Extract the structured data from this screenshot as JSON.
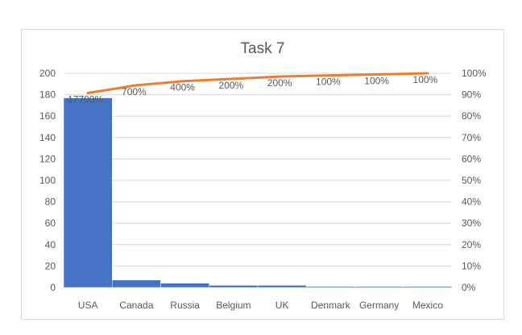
{
  "chart_data": {
    "type": "bar",
    "title": "Task 7",
    "xlabel": "",
    "ylabel": "",
    "categories": [
      "USA",
      "Canada",
      "Russia",
      "Belgium",
      "UK",
      "Denmark",
      "Germany",
      "Mexico"
    ],
    "series": [
      {
        "type": "bar",
        "axis": "primary",
        "color": "#4472C4",
        "values": [
          177,
          7,
          4,
          2,
          2,
          1,
          1,
          1
        ]
      },
      {
        "type": "line",
        "axis": "secondary",
        "color": "#ED7D31",
        "values": [
          90.8,
          94.4,
          96.4,
          97.4,
          98.5,
          99.0,
          99.5,
          100.0
        ]
      }
    ],
    "data_labels": [
      "17700%",
      "700%",
      "400%",
      "200%",
      "200%",
      "100%",
      "100%",
      "100%"
    ],
    "ylim": [
      0,
      200
    ],
    "y_ticks": [
      "0",
      "20",
      "40",
      "60",
      "80",
      "100",
      "120",
      "140",
      "160",
      "180",
      "200"
    ],
    "y2lim": [
      0,
      100
    ],
    "y2_ticks": [
      "0%",
      "10%",
      "20%",
      "30%",
      "40%",
      "50%",
      "60%",
      "70%",
      "80%",
      "90%",
      "100%"
    ],
    "grid": true,
    "legend": "none"
  }
}
